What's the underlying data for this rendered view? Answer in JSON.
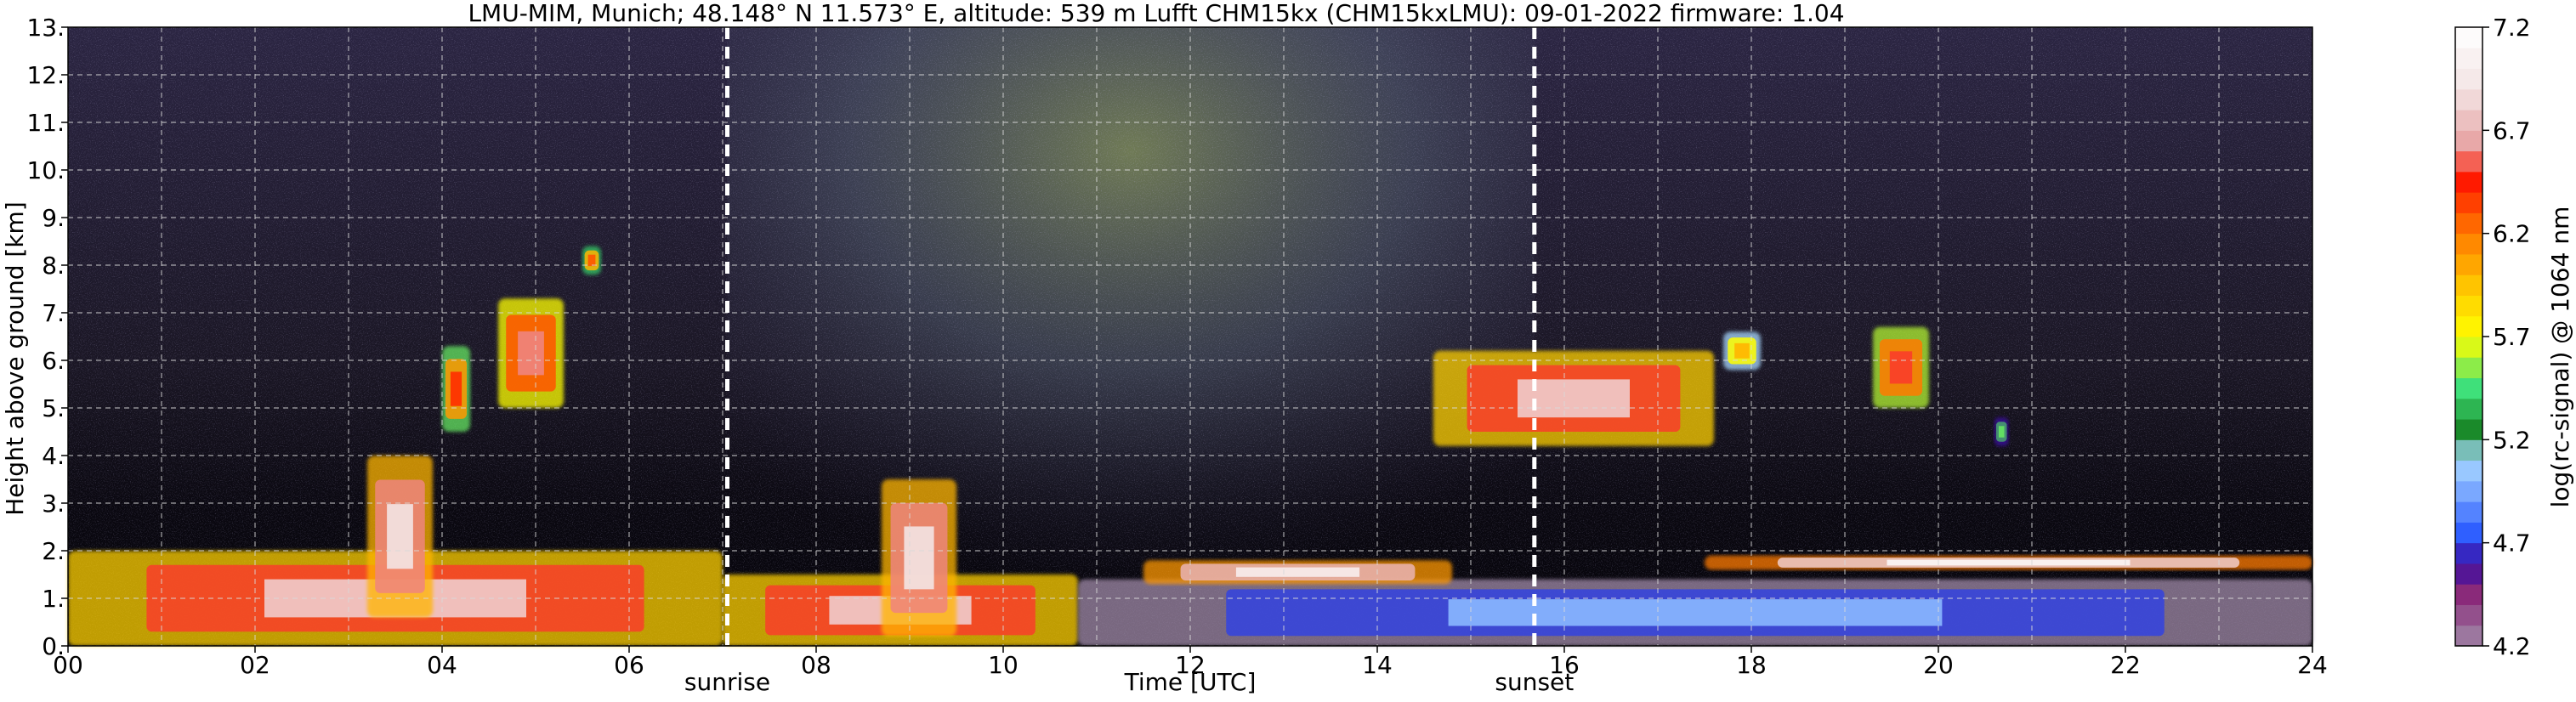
{
  "chart_data": {
    "type": "heatmap",
    "title": "LMU-MIM, Munich; 48.148° N 11.573° E, altitude: 539 m    Lufft CHM15kx (CHM15kxLMU): 09-01-2022    firmware: 1.04",
    "xlabel": "Time [UTC]",
    "ylabel": "Height above ground [km]",
    "colorbar_label": "log(rc-signal) @ 1064 nm",
    "xlim": [
      0,
      24
    ],
    "ylim": [
      0,
      13
    ],
    "x_ticks": [
      "00",
      "02",
      "04",
      "06",
      "08",
      "10",
      "12",
      "14",
      "16",
      "18",
      "20",
      "22",
      "24"
    ],
    "y_ticks": [
      "0.",
      "1.",
      "2.",
      "3.",
      "4.",
      "5.",
      "6.",
      "7.",
      "8.",
      "9.",
      "10.",
      "11.",
      "12.",
      "13."
    ],
    "colorbar_ticks": [
      "4.2",
      "4.7",
      "5.2",
      "5.7",
      "6.2",
      "6.7",
      "7.2"
    ],
    "colorbar_range": [
      4.2,
      7.2
    ],
    "grid": true,
    "annotations": [
      {
        "label": "sunrise",
        "time": 7.05
      },
      {
        "label": "sunset",
        "time": 15.68
      }
    ],
    "features": [
      {
        "kind": "boundary layer aerosol",
        "t_start": 0.0,
        "t_end": 7.0,
        "h_bottom": 0.0,
        "h_top": 2.0,
        "level": 6.8
      },
      {
        "kind": "rising plume",
        "t_start": 3.2,
        "t_end": 3.9,
        "h_bottom": 0.6,
        "h_top": 4.0,
        "level": 6.9
      },
      {
        "kind": "cloud",
        "t_start": 4.0,
        "t_end": 4.3,
        "h_bottom": 4.5,
        "h_top": 6.3,
        "level": 6.4
      },
      {
        "kind": "cloud",
        "t_start": 4.6,
        "t_end": 5.3,
        "h_bottom": 5.0,
        "h_top": 7.3,
        "level": 6.6
      },
      {
        "kind": "cloud",
        "t_start": 5.5,
        "t_end": 5.7,
        "h_bottom": 7.8,
        "h_top": 8.4,
        "level": 6.3
      },
      {
        "kind": "morning aerosol",
        "t_start": 7.0,
        "t_end": 10.8,
        "h_bottom": 0.0,
        "h_top": 1.5,
        "level": 6.8
      },
      {
        "kind": "convective plume",
        "t_start": 8.7,
        "t_end": 9.5,
        "h_bottom": 0.2,
        "h_top": 3.5,
        "level": 6.9
      },
      {
        "kind": "afternoon aerosol",
        "t_start": 10.8,
        "t_end": 24.0,
        "h_bottom": 0.0,
        "h_top": 1.4,
        "level": 5.0
      },
      {
        "kind": "layer top",
        "t_start": 11.5,
        "t_end": 14.8,
        "h_bottom": 1.3,
        "h_top": 1.8,
        "level": 7.0
      },
      {
        "kind": "cloud",
        "t_start": 14.6,
        "t_end": 17.6,
        "h_bottom": 4.2,
        "h_top": 6.2,
        "level": 6.8
      },
      {
        "kind": "cloud",
        "t_start": 17.7,
        "t_end": 18.1,
        "h_bottom": 5.8,
        "h_top": 6.6,
        "level": 6.0
      },
      {
        "kind": "residual layer top",
        "t_start": 17.5,
        "t_end": 24.0,
        "h_bottom": 1.6,
        "h_top": 1.9,
        "level": 7.1
      },
      {
        "kind": "cloud",
        "t_start": 19.3,
        "t_end": 19.9,
        "h_bottom": 5.0,
        "h_top": 6.7,
        "level": 6.5
      },
      {
        "kind": "cloud",
        "t_start": 20.6,
        "t_end": 20.75,
        "h_bottom": 4.2,
        "h_top": 4.8,
        "level": 5.5
      }
    ]
  }
}
